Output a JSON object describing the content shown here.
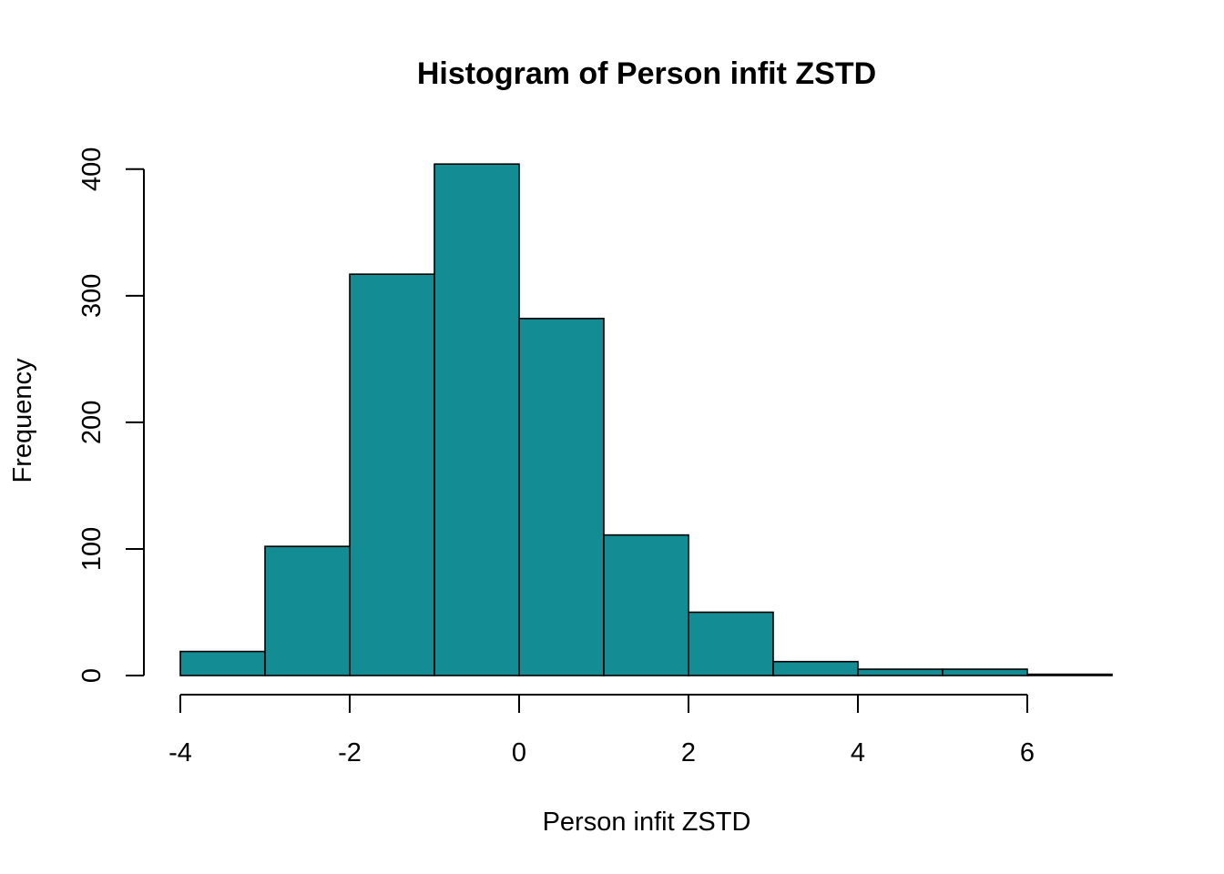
{
  "chart_data": {
    "type": "bar",
    "subtype": "histogram",
    "title": "Histogram of Person infit ZSTD",
    "xlabel": "Person infit ZSTD",
    "ylabel": "Frequency",
    "bins": [
      {
        "x0": -4,
        "x1": -3,
        "count": 19
      },
      {
        "x0": -3,
        "x1": -2,
        "count": 102
      },
      {
        "x0": -2,
        "x1": -1,
        "count": 317
      },
      {
        "x0": -1,
        "x1": 0,
        "count": 404
      },
      {
        "x0": 0,
        "x1": 1,
        "count": 282
      },
      {
        "x0": 1,
        "x1": 2,
        "count": 111
      },
      {
        "x0": 2,
        "x1": 3,
        "count": 50
      },
      {
        "x0": 3,
        "x1": 4,
        "count": 11
      },
      {
        "x0": 4,
        "x1": 5,
        "count": 5
      },
      {
        "x0": 5,
        "x1": 6,
        "count": 5
      },
      {
        "x0": 6,
        "x1": 7,
        "count": 1
      }
    ],
    "xlim": [
      -4,
      7
    ],
    "ylim": [
      0,
      404
    ],
    "xticks": [
      -4,
      -2,
      0,
      2,
      4,
      6
    ],
    "xtick_labels": [
      "-4",
      "-2",
      "0",
      "2",
      "4",
      "6"
    ],
    "yticks": [
      0,
      100,
      200,
      300,
      400
    ],
    "ytick_labels": [
      "0",
      "100",
      "200",
      "300",
      "400"
    ],
    "bar_color": "#148C94",
    "grid": false,
    "legend": "none"
  }
}
